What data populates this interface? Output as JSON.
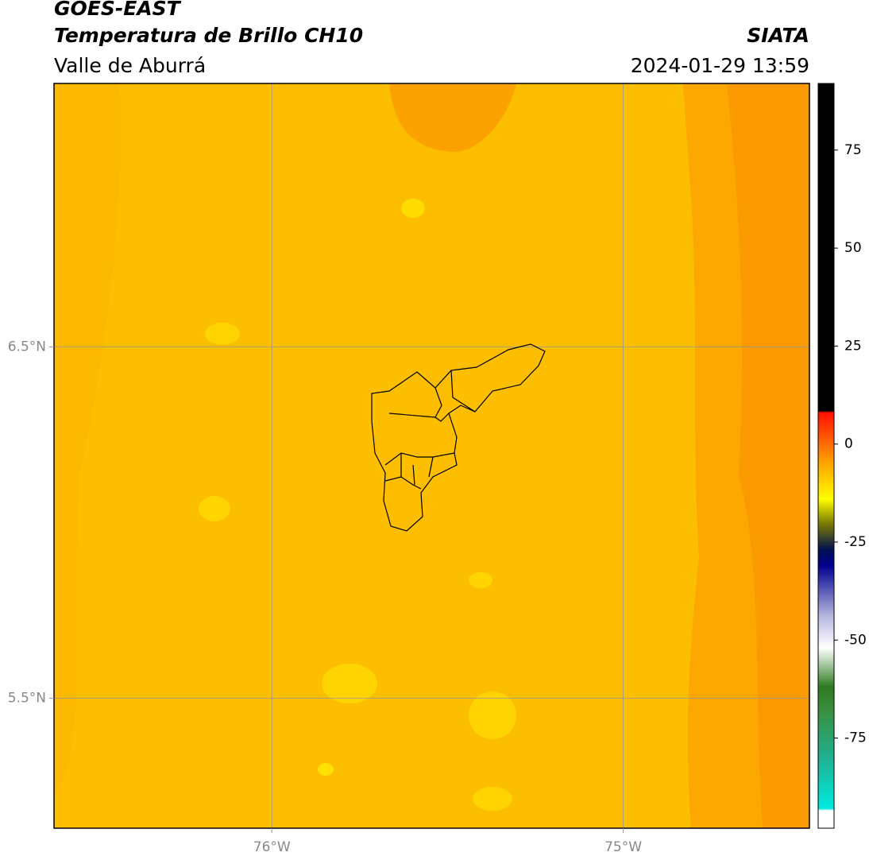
{
  "chart_data": {
    "type": "map",
    "title": "GOES-EAST",
    "subtitle": "Temperatura de Brillo CH10",
    "region": "Valle de Aburrá",
    "source": "SIATA",
    "datetime": "2024-01-29 13:59",
    "xlim": [
      -76.62,
      -74.47
    ],
    "ylim": [
      5.13,
      7.25
    ],
    "xticks": [
      {
        "value": -76,
        "label": "76°W"
      },
      {
        "value": -75,
        "label": "75°W"
      }
    ],
    "yticks": [
      {
        "value": 5.5,
        "label": "5.5°N"
      },
      {
        "value": 6.5,
        "label": "6.5°N"
      }
    ],
    "grid": true,
    "colorbar": {
      "lim": [
        -98,
        92
      ],
      "ticks": [
        -75,
        -50,
        -25,
        0,
        25,
        50,
        75
      ],
      "stops": [
        {
          "value": -98,
          "color": "#ffffff"
        },
        {
          "value": -93.5,
          "color": "#ffffff"
        },
        {
          "value": -93,
          "color": "#00ebe0"
        },
        {
          "value": -80,
          "color": "#20b090"
        },
        {
          "value": -68,
          "color": "#3a9040"
        },
        {
          "value": -62,
          "color": "#2e7a20"
        },
        {
          "value": -52,
          "color": "#ffffff"
        },
        {
          "value": -44,
          "color": "#b8b8e0"
        },
        {
          "value": -31,
          "color": "#000090"
        },
        {
          "value": -27,
          "color": "#001050"
        },
        {
          "value": -20,
          "color": "#808000"
        },
        {
          "value": -14,
          "color": "#ffff00"
        },
        {
          "value": -5,
          "color": "#ffa500"
        },
        {
          "value": 8,
          "color": "#ff1000"
        },
        {
          "value": 8.5,
          "color": "#000000"
        },
        {
          "value": 92,
          "color": "#000000"
        }
      ]
    }
  }
}
